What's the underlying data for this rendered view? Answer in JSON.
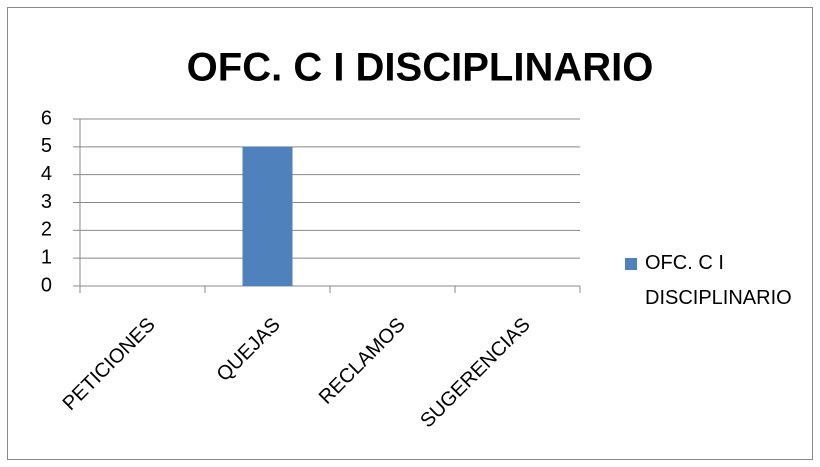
{
  "chart_data": {
    "type": "bar",
    "title": "OFC. C I DISCIPLINARIO",
    "categories": [
      "PETICIONES",
      "QUEJAS",
      "RECLAMOS",
      "SUGERENCIAS"
    ],
    "series": [
      {
        "name": "OFC. C I DISCIPLINARIO",
        "color": "#4f81bd",
        "values": [
          0,
          5,
          0,
          0
        ]
      }
    ],
    "ylim": [
      0,
      6
    ],
    "yticks": [
      0,
      1,
      2,
      3,
      4,
      5,
      6
    ],
    "grid": true,
    "legend": "right"
  }
}
